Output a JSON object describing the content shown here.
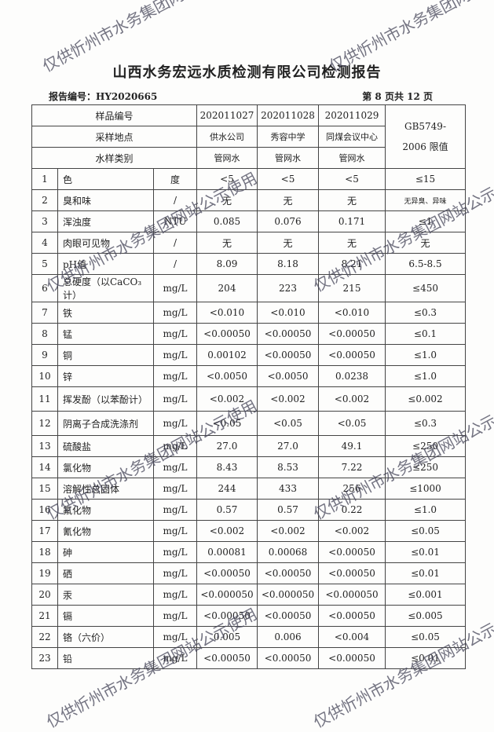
{
  "title": "山西水务宏远水质检测有限公司检测报告",
  "report_no": "报告编号：HY2020665",
  "page_info": "第 8 页共 12 页",
  "header": {
    "sample_no_label": "样品编号",
    "location_label": "采样地点",
    "type_label": "水样类别",
    "limit_label": "GB5749-2006 限值",
    "samples": [
      {
        "no": "202011027",
        "location": "供水公司",
        "type": "管网水"
      },
      {
        "no": "202011028",
        "location": "秀容中学",
        "type": "管网水"
      },
      {
        "no": "202011029",
        "location": "同煤会议中心",
        "type": "管网水"
      }
    ]
  },
  "rows": [
    {
      "n": "1",
      "name": "色",
      "unit": "度",
      "v": [
        "<5",
        "<5",
        "<5"
      ],
      "limit": "≤15"
    },
    {
      "n": "2",
      "name": "臭和味",
      "unit": "/",
      "v": [
        "无",
        "无",
        "无"
      ],
      "limit": "无异臭、异味"
    },
    {
      "n": "3",
      "name": "浑浊度",
      "unit": "NTU",
      "v": [
        "0.085",
        "0.076",
        "0.171"
      ],
      "limit": "≤1"
    },
    {
      "n": "4",
      "name": "肉眼可见物",
      "unit": "/",
      "v": [
        "无",
        "无",
        "无"
      ],
      "limit": "无"
    },
    {
      "n": "5",
      "name": "pH值",
      "unit": "/",
      "v": [
        "8.09",
        "8.18",
        "8.21"
      ],
      "limit": "6.5-8.5"
    },
    {
      "n": "6",
      "name": "总硬度（以CaCO₃计）",
      "unit": "mg/L",
      "v": [
        "204",
        "223",
        "215"
      ],
      "limit": "≤450"
    },
    {
      "n": "7",
      "name": "铁",
      "unit": "mg/L",
      "v": [
        "<0.010",
        "<0.010",
        "<0.010"
      ],
      "limit": "≤0.3"
    },
    {
      "n": "8",
      "name": "锰",
      "unit": "mg/L",
      "v": [
        "<0.00050",
        "<0.00050",
        "<0.00050"
      ],
      "limit": "≤0.1"
    },
    {
      "n": "9",
      "name": "铜",
      "unit": "mg/L",
      "v": [
        "0.00102",
        "<0.00050",
        "<0.00050"
      ],
      "limit": "≤1.0"
    },
    {
      "n": "10",
      "name": "锌",
      "unit": "mg/L",
      "v": [
        "<0.0050",
        "<0.0050",
        "0.0238"
      ],
      "limit": "≤1.0"
    },
    {
      "n": "11",
      "name": "挥发酚（以苯酚计）",
      "unit": "mg/L",
      "v": [
        "<0.002",
        "<0.002",
        "<0.002"
      ],
      "limit": "≤0.002"
    },
    {
      "n": "12",
      "name": "阴离子合成洗涤剂",
      "unit": "mg/L",
      "v": [
        "<0.05",
        "<0.05",
        "<0.05"
      ],
      "limit": "≤0.3"
    },
    {
      "n": "13",
      "name": "硫酸盐",
      "unit": "mg/L",
      "v": [
        "27.0",
        "27.0",
        "49.1"
      ],
      "limit": "≤250"
    },
    {
      "n": "14",
      "name": "氯化物",
      "unit": "mg/L",
      "v": [
        "8.43",
        "8.53",
        "7.22"
      ],
      "limit": "≤250"
    },
    {
      "n": "15",
      "name": "溶解性总固体",
      "unit": "mg/L",
      "v": [
        "244",
        "433",
        "256"
      ],
      "limit": "≤1000"
    },
    {
      "n": "16",
      "name": "氟化物",
      "unit": "mg/L",
      "v": [
        "0.57",
        "0.57",
        "0.22"
      ],
      "limit": "≤1.0"
    },
    {
      "n": "17",
      "name": "氰化物",
      "unit": "mg/L",
      "v": [
        "<0.002",
        "<0.002",
        "<0.002"
      ],
      "limit": "≤0.05"
    },
    {
      "n": "18",
      "name": "砷",
      "unit": "mg/L",
      "v": [
        "0.00081",
        "0.00068",
        "<0.00050"
      ],
      "limit": "≤0.01"
    },
    {
      "n": "19",
      "name": "硒",
      "unit": "mg/L",
      "v": [
        "<0.00050",
        "<0.00050",
        "<0.00050"
      ],
      "limit": "≤0.01"
    },
    {
      "n": "20",
      "name": "汞",
      "unit": "mg/L",
      "v": [
        "<0.000050",
        "<0.000050",
        "<0.000050"
      ],
      "limit": "≤0.001"
    },
    {
      "n": "21",
      "name": "镉",
      "unit": "mg/L",
      "v": [
        "<0.00050",
        "<0.00050",
        "<0.00050"
      ],
      "limit": "≤0.005"
    },
    {
      "n": "22",
      "name": "铬（六价）",
      "unit": "mg/L",
      "v": [
        "0.005",
        "0.006",
        "<0.004"
      ],
      "limit": "≤0.05"
    },
    {
      "n": "23",
      "name": "铅",
      "unit": "mg/L",
      "v": [
        "<0.00050",
        "<0.00050",
        "<0.00050"
      ],
      "limit": "≤0.01"
    }
  ],
  "watermark": "仅供忻州市水务集团网站公示使用"
}
